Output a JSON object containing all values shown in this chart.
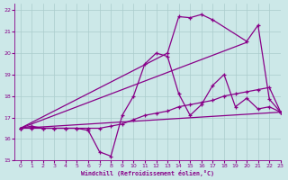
{
  "xlabel": "Windchill (Refroidissement éolien,°C)",
  "bg_color": "#cce8e8",
  "grid_color": "#aacccc",
  "line_color": "#880088",
  "xlim": [
    -0.5,
    23
  ],
  "ylim": [
    15,
    22.3
  ],
  "xticks": [
    0,
    1,
    2,
    3,
    4,
    5,
    6,
    7,
    8,
    9,
    10,
    11,
    12,
    13,
    14,
    15,
    16,
    17,
    18,
    19,
    20,
    21,
    22,
    23
  ],
  "yticks": [
    15,
    16,
    17,
    18,
    19,
    20,
    21,
    22
  ],
  "curve1_x": [
    0,
    1,
    2,
    3,
    4,
    5,
    6,
    7,
    8,
    9,
    10,
    11,
    12,
    13,
    14,
    15,
    16,
    17,
    18,
    19,
    20,
    21,
    22,
    23
  ],
  "curve1_y": [
    16.5,
    16.6,
    16.5,
    16.5,
    16.5,
    16.5,
    16.4,
    15.4,
    15.2,
    17.1,
    18.0,
    19.5,
    20.0,
    19.85,
    18.1,
    17.1,
    17.6,
    18.5,
    19.0,
    17.5,
    17.9,
    17.4,
    17.5,
    17.25
  ],
  "curve2_x": [
    0,
    1,
    2,
    3,
    4,
    5,
    6,
    7,
    8,
    9,
    10,
    11,
    12,
    13,
    14,
    15,
    16,
    17,
    18,
    19,
    20,
    21,
    22,
    23
  ],
  "curve2_y": [
    16.5,
    16.5,
    16.5,
    16.5,
    16.5,
    16.5,
    16.5,
    16.5,
    16.6,
    16.7,
    16.9,
    17.1,
    17.2,
    17.3,
    17.5,
    17.6,
    17.7,
    17.8,
    18.0,
    18.1,
    18.2,
    18.3,
    18.4,
    17.25
  ],
  "line3_x": [
    0,
    20
  ],
  "line3_y": [
    16.5,
    20.5
  ],
  "line4_x": [
    0,
    23
  ],
  "line4_y": [
    16.5,
    17.25
  ],
  "curve5_x": [
    0,
    13,
    14,
    15,
    16,
    17,
    20,
    21,
    22,
    23
  ],
  "curve5_y": [
    16.5,
    20.0,
    21.7,
    21.65,
    21.8,
    21.55,
    20.55,
    21.3,
    17.85,
    17.25
  ]
}
